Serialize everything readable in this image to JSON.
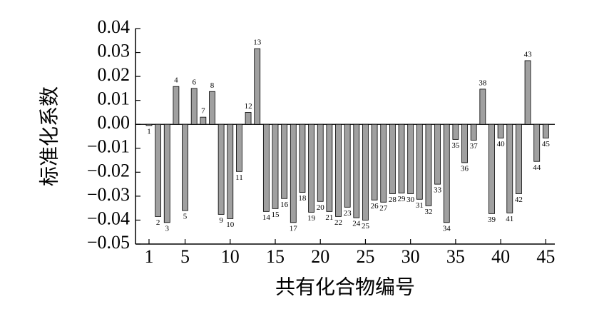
{
  "chart_data": {
    "type": "bar",
    "y_label": "标准化系数",
    "x_label": "共有化合物编号",
    "x": [
      1,
      2,
      3,
      4,
      5,
      6,
      7,
      8,
      9,
      10,
      11,
      12,
      13,
      14,
      15,
      16,
      17,
      18,
      19,
      20,
      21,
      22,
      23,
      24,
      25,
      26,
      27,
      28,
      29,
      30,
      31,
      32,
      33,
      34,
      35,
      36,
      37,
      38,
      39,
      40,
      41,
      42,
      43,
      44,
      45
    ],
    "values": [
      -0.0005,
      -0.0385,
      -0.041,
      0.0158,
      -0.036,
      0.015,
      0.003,
      0.0137,
      -0.0376,
      -0.0394,
      -0.0197,
      0.005,
      0.0316,
      -0.0364,
      -0.0352,
      -0.031,
      -0.041,
      -0.0284,
      -0.0367,
      -0.0322,
      -0.0364,
      -0.0385,
      -0.0346,
      -0.039,
      -0.04,
      -0.0316,
      -0.0325,
      -0.029,
      -0.0287,
      -0.029,
      -0.0313,
      -0.034,
      -0.025,
      -0.041,
      -0.0063,
      -0.016,
      -0.0066,
      0.0147,
      -0.0373,
      -0.0057,
      -0.037,
      -0.029,
      0.0266,
      -0.0155,
      -0.0057
    ],
    "color": "#a0a0a0",
    "xlim": [
      -0.5,
      46
    ],
    "xticks": [
      1,
      5,
      10,
      15,
      20,
      25,
      30,
      35,
      40,
      45
    ],
    "ylim": [
      -0.05,
      0.04
    ],
    "yticks": [
      {
        "value": -0.05,
        "label": "−0.05"
      },
      {
        "value": -0.04,
        "label": "−0.04"
      },
      {
        "value": -0.03,
        "label": "−0.03"
      },
      {
        "value": -0.02,
        "label": "−0.02"
      },
      {
        "value": -0.01,
        "label": "−0.01"
      },
      {
        "value": 0,
        "label": "0.00"
      },
      {
        "value": 0.01,
        "label": "0.01"
      },
      {
        "value": 0.02,
        "label": "0.02"
      },
      {
        "value": 0.03,
        "label": "0.03"
      },
      {
        "value": 0.04,
        "label": "0.04"
      }
    ]
  }
}
